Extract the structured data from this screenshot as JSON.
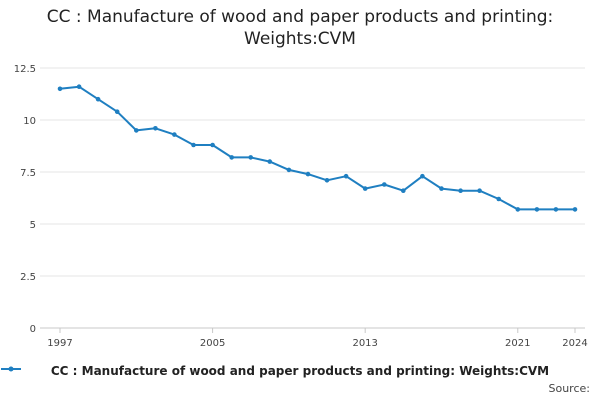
{
  "chart_data": {
    "type": "line",
    "title": "CC : Manufacture of wood and paper products and printing: Weights:CVM",
    "xlabel": "",
    "ylabel": "",
    "x": [
      1997,
      1998,
      1999,
      2000,
      2001,
      2002,
      2003,
      2004,
      2005,
      2006,
      2007,
      2008,
      2009,
      2010,
      2011,
      2012,
      2013,
      2014,
      2015,
      2016,
      2017,
      2018,
      2019,
      2020,
      2021,
      2022,
      2023,
      2024
    ],
    "series": [
      {
        "name": "CC : Manufacture of wood and paper products and printing: Weights:CVM",
        "color": "#1f7fc1",
        "values": [
          11.5,
          11.6,
          11.0,
          10.4,
          9.5,
          9.6,
          9.3,
          8.8,
          8.8,
          8.2,
          8.2,
          8.0,
          7.6,
          7.4,
          7.1,
          7.3,
          6.7,
          6.9,
          6.6,
          7.3,
          6.7,
          6.6,
          6.6,
          6.2,
          5.7,
          5.7,
          5.7,
          5.7
        ]
      }
    ],
    "xticks": [
      "1997",
      "2005",
      "2013",
      "2021",
      "2024"
    ],
    "yticks": [
      "0",
      "2.5",
      "5",
      "7.5",
      "10",
      "12.5"
    ],
    "xlim": [
      1997,
      2024
    ],
    "ylim": [
      0,
      12.5
    ],
    "grid": true,
    "legend_position": "bottom"
  },
  "footer": {
    "source_label": "Source:"
  }
}
